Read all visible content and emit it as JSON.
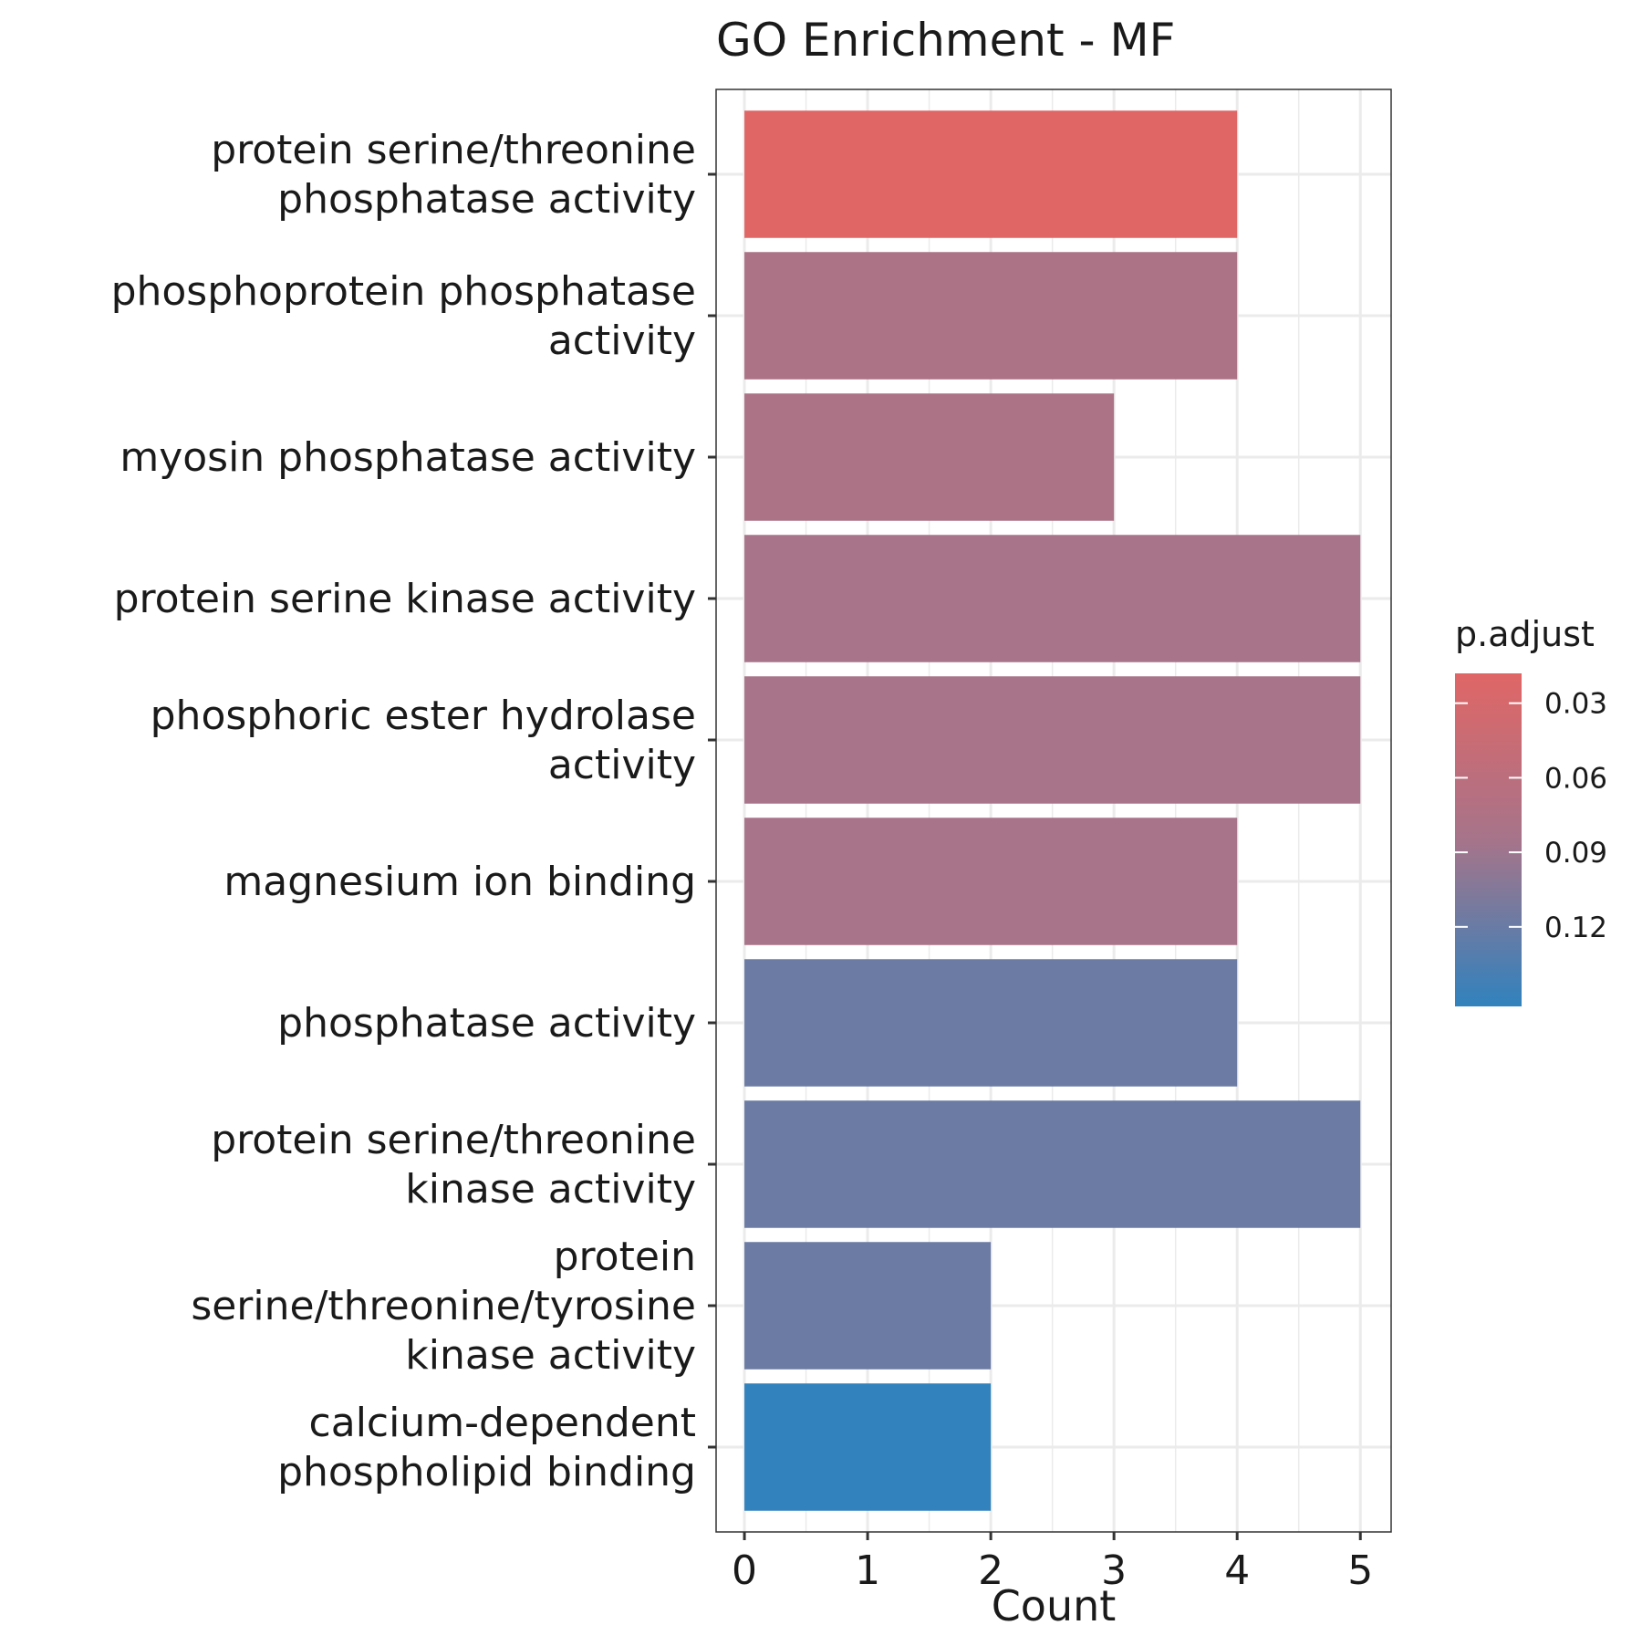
{
  "chart_data": {
    "type": "bar",
    "orientation": "horizontal",
    "title": "GO Enrichment - MF",
    "xlabel": "Count",
    "ylabel": "",
    "xlim": [
      -0.23,
      5.25
    ],
    "xticks": [
      0,
      1,
      2,
      3,
      4,
      5
    ],
    "grid": true,
    "categories": [
      [
        "protein serine/threonine",
        "phosphatase activity"
      ],
      [
        "phosphoprotein phosphatase",
        "activity"
      ],
      [
        "myosin phosphatase activity"
      ],
      [
        "protein serine kinase activity"
      ],
      [
        "phosphoric ester hydrolase",
        "activity"
      ],
      [
        "magnesium ion binding"
      ],
      [
        "phosphatase activity"
      ],
      [
        "protein serine/threonine",
        "kinase activity"
      ],
      [
        "protein",
        "serine/threonine/tyrosine",
        "kinase activity"
      ],
      [
        "calcium-dependent",
        "phospholipid binding"
      ]
    ],
    "values": [
      4,
      4,
      3,
      5,
      5,
      4,
      4,
      5,
      2,
      2
    ],
    "p_adjust": [
      0.018,
      0.078,
      0.078,
      0.083,
      0.083,
      0.083,
      0.118,
      0.118,
      0.118,
      0.152
    ],
    "legend": {
      "title": "p.adjust",
      "placement": "right",
      "ticks": [
        "0.03",
        "0.06",
        "0.09",
        "0.12"
      ],
      "tick_values": [
        0.03,
        0.06,
        0.09,
        0.12
      ],
      "range": [
        0.018,
        0.152
      ],
      "color_low": "#e06666",
      "color_high": "#3182bd"
    }
  }
}
